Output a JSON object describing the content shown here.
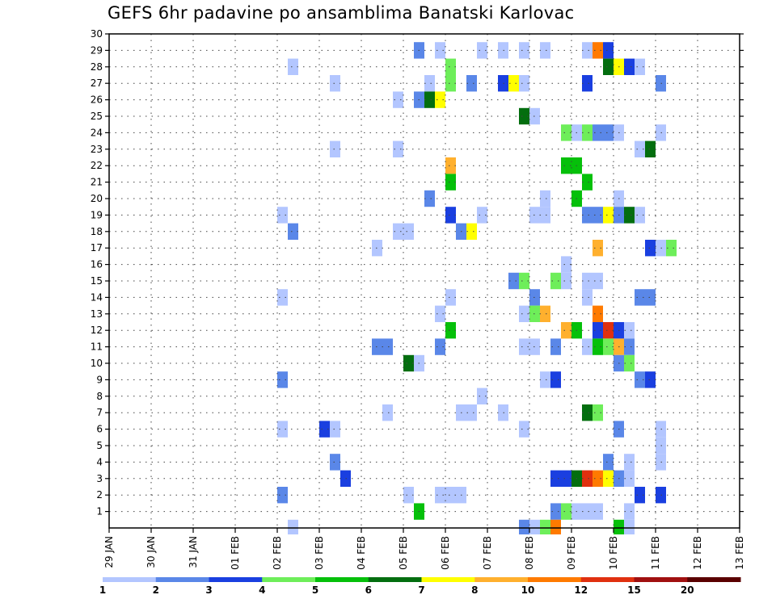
{
  "chart_data": {
    "type": "heatmap",
    "title": "GEFS 6hr padavine po ansamblima Banatski Karlovac",
    "x_tick_labels": [
      "29 JAN",
      "30 JAN",
      "31 JAN",
      "01 FEB",
      "02 FEB",
      "03 FEB",
      "04 FEB",
      "05 FEB",
      "06 FEB",
      "07 FEB",
      "08 FEB",
      "09 FEB",
      "10 FEB",
      "11 FEB",
      "12 FEB",
      "13 FEB"
    ],
    "y_tick_labels": [
      "1",
      "2",
      "3",
      "4",
      "5",
      "6",
      "7",
      "8",
      "9",
      "10",
      "11",
      "12",
      "13",
      "14",
      "15",
      "16",
      "17",
      "18",
      "19",
      "20",
      "21",
      "22",
      "23",
      "24",
      "25",
      "26",
      "27",
      "28",
      "29",
      "30"
    ],
    "x_range_days": [
      0,
      15
    ],
    "y_range_members": [
      0,
      30
    ],
    "grid": true,
    "colorbar": {
      "labels": [
        "1",
        "2",
        "3",
        "4",
        "5",
        "6",
        "7",
        "8",
        "10",
        "12",
        "15",
        "20"
      ],
      "colors": [
        "#b3c6ff",
        "#5a87e8",
        "#1a3fe0",
        "#6eee5a",
        "#05c00a",
        "#036e0f",
        "#ffff00",
        "#ffb02e",
        "#ff7a00",
        "#e0300f",
        "#a01010",
        "#5a0000"
      ]
    },
    "cells": [
      [
        7.25,
        29,
        1
      ],
      [
        7.75,
        29,
        0
      ],
      [
        8.75,
        29,
        0
      ],
      [
        9.25,
        29,
        0
      ],
      [
        9.75,
        29,
        0
      ],
      [
        10.25,
        29,
        0
      ],
      [
        11.25,
        29,
        0
      ],
      [
        11.5,
        29,
        8
      ],
      [
        11.75,
        29,
        2
      ],
      [
        4.25,
        28,
        0
      ],
      [
        8.0,
        28,
        3
      ],
      [
        11.75,
        28,
        5
      ],
      [
        12.0,
        28,
        6
      ],
      [
        12.25,
        28,
        2
      ],
      [
        12.5,
        28,
        0
      ],
      [
        5.25,
        27,
        0
      ],
      [
        7.5,
        27,
        0
      ],
      [
        8.0,
        27,
        3
      ],
      [
        8.5,
        27,
        1
      ],
      [
        9.25,
        27,
        2
      ],
      [
        9.5,
        27,
        6
      ],
      [
        9.75,
        27,
        0
      ],
      [
        11.25,
        27,
        2
      ],
      [
        13.0,
        27,
        1
      ],
      [
        6.75,
        26,
        0
      ],
      [
        7.25,
        26,
        1
      ],
      [
        7.5,
        26,
        5
      ],
      [
        7.75,
        26,
        6
      ],
      [
        9.75,
        25,
        5
      ],
      [
        10.0,
        25,
        0
      ],
      [
        10.75,
        24,
        3
      ],
      [
        11.0,
        24,
        0
      ],
      [
        11.25,
        24,
        3
      ],
      [
        11.5,
        24,
        1
      ],
      [
        11.75,
        24,
        1
      ],
      [
        12.0,
        24,
        0
      ],
      [
        13.0,
        24,
        0
      ],
      [
        5.25,
        23,
        0
      ],
      [
        6.75,
        23,
        0
      ],
      [
        12.5,
        23,
        0
      ],
      [
        12.75,
        23,
        5
      ],
      [
        8.0,
        22,
        7
      ],
      [
        10.75,
        22,
        4
      ],
      [
        11.0,
        22,
        4
      ],
      [
        8.0,
        21,
        4
      ],
      [
        11.25,
        21,
        4
      ],
      [
        7.5,
        20,
        1
      ],
      [
        10.25,
        20,
        0
      ],
      [
        11.0,
        20,
        4
      ],
      [
        12.0,
        20,
        0
      ],
      [
        4.0,
        19,
        0
      ],
      [
        8.0,
        19,
        2
      ],
      [
        8.75,
        19,
        0
      ],
      [
        10.0,
        19,
        0
      ],
      [
        10.25,
        19,
        0
      ],
      [
        11.25,
        19,
        1
      ],
      [
        11.5,
        19,
        1
      ],
      [
        11.75,
        19,
        6
      ],
      [
        12.0,
        19,
        1
      ],
      [
        12.25,
        19,
        5
      ],
      [
        12.5,
        19,
        0
      ],
      [
        4.25,
        18,
        1
      ],
      [
        6.75,
        18,
        0
      ],
      [
        7.0,
        18,
        0
      ],
      [
        8.25,
        18,
        1
      ],
      [
        8.5,
        18,
        6
      ],
      [
        6.25,
        17,
        0
      ],
      [
        11.5,
        17,
        7
      ],
      [
        12.75,
        17,
        2
      ],
      [
        13.0,
        17,
        0
      ],
      [
        13.25,
        17,
        3
      ],
      [
        10.75,
        16,
        0
      ],
      [
        9.5,
        15,
        1
      ],
      [
        9.75,
        15,
        3
      ],
      [
        10.5,
        15,
        3
      ],
      [
        10.75,
        15,
        0
      ],
      [
        11.25,
        15,
        0
      ],
      [
        11.5,
        15,
        0
      ],
      [
        4.0,
        14,
        0
      ],
      [
        8.0,
        14,
        0
      ],
      [
        10.0,
        14,
        1
      ],
      [
        11.25,
        14,
        0
      ],
      [
        12.5,
        14,
        1
      ],
      [
        12.75,
        14,
        1
      ],
      [
        7.75,
        13,
        0
      ],
      [
        9.75,
        13,
        0
      ],
      [
        10.0,
        13,
        3
      ],
      [
        10.25,
        13,
        7
      ],
      [
        11.5,
        13,
        8
      ],
      [
        8.0,
        12,
        4
      ],
      [
        10.75,
        12,
        7
      ],
      [
        11.0,
        12,
        4
      ],
      [
        11.5,
        12,
        2
      ],
      [
        11.75,
        12,
        9
      ],
      [
        12.0,
        12,
        2
      ],
      [
        12.25,
        12,
        0
      ],
      [
        6.25,
        11,
        1
      ],
      [
        6.5,
        11,
        1
      ],
      [
        7.75,
        11,
        1
      ],
      [
        9.75,
        11,
        0
      ],
      [
        10.0,
        11,
        0
      ],
      [
        10.5,
        11,
        1
      ],
      [
        11.25,
        11,
        0
      ],
      [
        11.5,
        11,
        4
      ],
      [
        11.75,
        11,
        3
      ],
      [
        12.0,
        11,
        7
      ],
      [
        12.25,
        11,
        1
      ],
      [
        7.0,
        10,
        5
      ],
      [
        7.25,
        10,
        0
      ],
      [
        12.0,
        10,
        1
      ],
      [
        12.25,
        10,
        3
      ],
      [
        4.0,
        9,
        1
      ],
      [
        10.25,
        9,
        0
      ],
      [
        10.5,
        9,
        2
      ],
      [
        12.5,
        9,
        1
      ],
      [
        12.75,
        9,
        2
      ],
      [
        8.75,
        8,
        0
      ],
      [
        6.5,
        7,
        0
      ],
      [
        8.25,
        7,
        0
      ],
      [
        8.5,
        7,
        0
      ],
      [
        9.25,
        7,
        0
      ],
      [
        11.25,
        7,
        5
      ],
      [
        11.5,
        7,
        3
      ],
      [
        4.0,
        6,
        0
      ],
      [
        5.0,
        6,
        2
      ],
      [
        5.25,
        6,
        0
      ],
      [
        9.75,
        6,
        0
      ],
      [
        12.0,
        6,
        1
      ],
      [
        13.0,
        6,
        0
      ],
      [
        13.0,
        5,
        0
      ],
      [
        5.25,
        4,
        1
      ],
      [
        11.75,
        4,
        1
      ],
      [
        12.25,
        4,
        0
      ],
      [
        13.0,
        4,
        0
      ],
      [
        5.5,
        3,
        2
      ],
      [
        10.5,
        3,
        2
      ],
      [
        10.75,
        3,
        2
      ],
      [
        11.0,
        3,
        5
      ],
      [
        11.25,
        3,
        9
      ],
      [
        11.5,
        3,
        8
      ],
      [
        11.75,
        3,
        6
      ],
      [
        12.0,
        3,
        1
      ],
      [
        12.25,
        3,
        0
      ],
      [
        4.0,
        2,
        1
      ],
      [
        7.0,
        2,
        0
      ],
      [
        7.75,
        2,
        0
      ],
      [
        8.0,
        2,
        0
      ],
      [
        8.25,
        2,
        0
      ],
      [
        12.5,
        2,
        2
      ],
      [
        13.0,
        2,
        2
      ],
      [
        7.25,
        1,
        4
      ],
      [
        10.5,
        1,
        1
      ],
      [
        10.75,
        1,
        3
      ],
      [
        11.0,
        1,
        0
      ],
      [
        11.25,
        1,
        0
      ],
      [
        11.5,
        1,
        0
      ],
      [
        12.25,
        1,
        0
      ],
      [
        4.25,
        0,
        0
      ],
      [
        9.75,
        0,
        1
      ],
      [
        10.0,
        0,
        0
      ],
      [
        10.25,
        0,
        3
      ],
      [
        10.5,
        0,
        8
      ],
      [
        12.0,
        0,
        4
      ],
      [
        12.25,
        0,
        0
      ]
    ]
  }
}
